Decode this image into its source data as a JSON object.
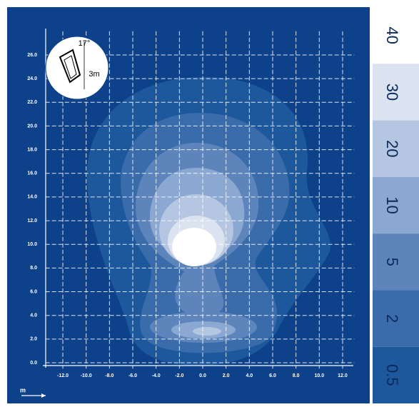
{
  "chart_data": {
    "type": "contour",
    "levels": [
      {
        "value": 40,
        "color": "#ffffff"
      },
      {
        "value": 30,
        "color": "#dbe3f0"
      },
      {
        "value": 20,
        "color": "#b5c6e2"
      },
      {
        "value": 10,
        "color": "#8ba8d2"
      },
      {
        "value": 5,
        "color": "#5d85bc"
      },
      {
        "value": 2,
        "color": "#3a6cab"
      },
      {
        "value": 0.5,
        "color": "#1d579c"
      }
    ],
    "background": "#0d4189",
    "xlim": [
      -13,
      13
    ],
    "ylim": [
      -0.5,
      28
    ],
    "xticks": [
      {
        "value": -12,
        "label": "-12.0"
      },
      {
        "value": -10,
        "label": "-10.0"
      },
      {
        "value": -8,
        "label": "-8.0"
      },
      {
        "value": -6,
        "label": "-6.0"
      },
      {
        "value": -4,
        "label": "-4.0"
      },
      {
        "value": -2,
        "label": "-2.0"
      },
      {
        "value": 0,
        "label": "0.0"
      },
      {
        "value": 2,
        "label": "2.0"
      },
      {
        "value": 4,
        "label": "4.0"
      },
      {
        "value": 6,
        "label": "6.0"
      },
      {
        "value": 8,
        "label": "8.0"
      },
      {
        "value": 10,
        "label": "10.0"
      },
      {
        "value": 12,
        "label": "12.0"
      }
    ],
    "yticks": [
      {
        "value": 0,
        "label": "0.0"
      },
      {
        "value": 2,
        "label": "2.0"
      },
      {
        "value": 4,
        "label": "4.0"
      },
      {
        "value": 6,
        "label": "6.0"
      },
      {
        "value": 8,
        "label": "8.0"
      },
      {
        "value": 10,
        "label": "10.0"
      },
      {
        "value": 12,
        "label": "12.0"
      },
      {
        "value": 14,
        "label": "14.0"
      },
      {
        "value": 16,
        "label": "16.0"
      },
      {
        "value": 18,
        "label": "18.0"
      },
      {
        "value": 20,
        "label": "20.0"
      },
      {
        "value": 22,
        "label": "22.0"
      },
      {
        "value": 24,
        "label": "24.0"
      },
      {
        "value": 26,
        "label": "26.0"
      }
    ],
    "grid": true,
    "x_label": "m",
    "annotations": [
      "17°",
      "3m"
    ]
  }
}
